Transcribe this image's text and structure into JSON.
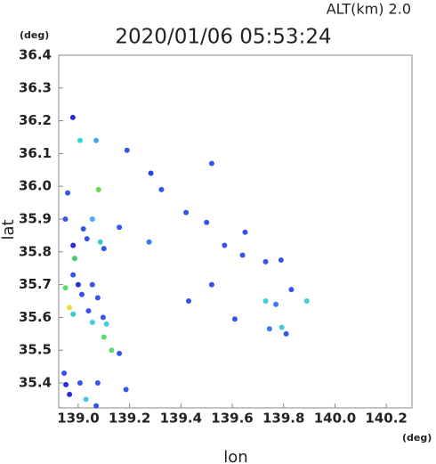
{
  "chart_data": {
    "type": "scatter",
    "title": "2020/01/06 05:53:24",
    "subtitle": "ALT(km)  2.0",
    "x_label": "lon",
    "y_label": "lat",
    "x_unit": "(deg)",
    "y_unit": "(deg)",
    "xlim": [
      138.924,
      140.3
    ],
    "ylim": [
      35.324,
      36.4
    ],
    "xticks": [
      {
        "value": 139,
        "label": "139.0"
      },
      139.2,
      139.4,
      139.6,
      139.8,
      {
        "value": 140,
        "label": "140.0"
      },
      140.2
    ],
    "yticks": [
      {
        "value": 35.4,
        "label": "35.4"
      },
      35.5,
      35.6,
      35.7,
      35.8,
      35.9,
      {
        "value": 36,
        "label": "36.0"
      },
      36.1,
      36.2,
      36.3,
      36.4
    ],
    "x": [
      138.979,
      139.007,
      139.07,
      139.19,
      139.283,
      138.959,
      139.079,
      138.95,
      139.055,
      139.16,
      139.02,
      139.034,
      138.98,
      139.086,
      138.986,
      139.1,
      139.276,
      139.324,
      139.42,
      139.52,
      139.5,
      139.57,
      139.65,
      139.64,
      139.73,
      139.79,
      138.98,
      138.95,
      139.0,
      139.055,
      139.014,
      139.076,
      138.966,
      138.98,
      139.04,
      139.097,
      139.11,
      139.055,
      139.1,
      139.13,
      139.16,
      139.43,
      139.52,
      139.61,
      139.73,
      139.77,
      139.83,
      139.89,
      139.793,
      139.745,
      139.81,
      138.945,
      138.952,
      139.007,
      138.966,
      139.076,
      139.03,
      139.07,
      139.186
    ],
    "y": [
      36.21,
      36.14,
      36.14,
      36.11,
      36.04,
      35.98,
      35.99,
      35.9,
      35.9,
      35.875,
      35.87,
      35.84,
      35.82,
      35.83,
      35.78,
      35.81,
      35.83,
      35.99,
      35.92,
      36.07,
      35.89,
      35.82,
      35.86,
      35.79,
      35.77,
      35.775,
      35.73,
      35.69,
      35.7,
      35.7,
      35.67,
      35.66,
      35.63,
      35.61,
      35.62,
      35.6,
      35.58,
      35.585,
      35.54,
      35.5,
      35.49,
      35.65,
      35.7,
      35.595,
      35.65,
      35.64,
      35.685,
      35.65,
      35.57,
      35.565,
      35.55,
      35.43,
      35.395,
      35.4,
      35.365,
      35.4,
      35.35,
      35.33,
      35.38
    ],
    "colors": [
      "#2a2ad8",
      "#2ad8d8",
      "#4aa0f0",
      "#3355ee",
      "#2244dd",
      "#3355ee",
      "#66dd44",
      "#3355ee",
      "#44aaff",
      "#3355ee",
      "#3355ee",
      "#3355ee",
      "#2a2ad8",
      "#33cccc",
      "#44cc66",
      "#3355ee",
      "#3a7af0",
      "#3355ee",
      "#3355ee",
      "#3355ee",
      "#3355ee",
      "#3355ee",
      "#3355ee",
      "#3355ee",
      "#3355ee",
      "#3355ee",
      "#3355ee",
      "#55dd66",
      "#2a2ad8",
      "#3355ee",
      "#3355ee",
      "#3355ee",
      "#eedd33",
      "#33cccc",
      "#3355ee",
      "#3355ee",
      "#44ccdd",
      "#44ccdd",
      "#55dd66",
      "#55dd66",
      "#3355ee",
      "#3355ee",
      "#3355ee",
      "#3355ee",
      "#44ccdd",
      "#3a7af0",
      "#3355ee",
      "#44ccdd",
      "#44ccdd",
      "#3a7af0",
      "#3355ee",
      "#3355ee",
      "#2a2ad8",
      "#3355ee",
      "#2a2ad8",
      "#3355ee",
      "#44ccdd",
      "#3355ee",
      "#3355ee"
    ]
  }
}
